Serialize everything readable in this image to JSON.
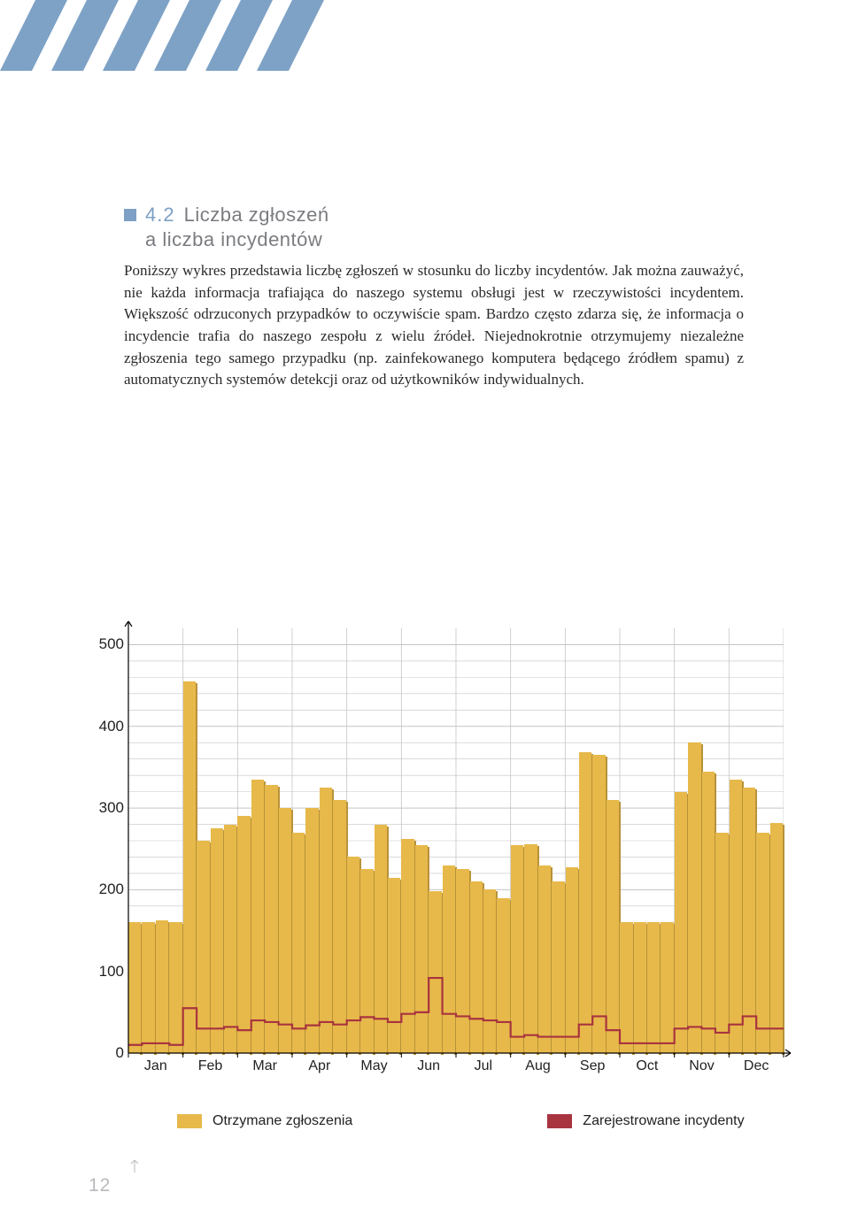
{
  "header": {
    "stripe_color": "#7ea2c6",
    "stripe_bg": "#ffffff"
  },
  "heading": {
    "number": "4.2",
    "title_main": "Liczba zgłoszeń",
    "title_sub": "a liczba incydentów",
    "box_color": "#7da0c4",
    "num_color": "#7da0c4",
    "txt_color": "#7a7c80"
  },
  "paragraph": "Poniższy wykres przedstawia liczbę zgłoszeń w stosunku do liczby incydentów. Jak można zauważyć, nie każda informacja trafiająca do naszego systemu obsługi jest w rzeczywistości incydentem. Większość odrzuconych przypadków to oczywiście spam. Bardzo często zdarza się, że informacja o incydencie trafia do naszego zespołu z wielu źródeł. Niejednokrotnie otrzymujemy niezależne zgłoszenia tego samego przypadku (np. zainfekowanego komputera będącego źródłem spamu) z automatycznych systemów detekcji oraz od użytkowników indywidualnych.",
  "chart": {
    "type": "bar+step",
    "ylim": [
      0,
      520
    ],
    "yticks": [
      0,
      100,
      200,
      300,
      400,
      500
    ],
    "xticks": [
      "Jan",
      "Feb",
      "Mar",
      "Apr",
      "May",
      "Jun",
      "Jul",
      "Aug",
      "Sep",
      "Oct",
      "Nov",
      "Dec"
    ],
    "grid_color": "#c4c4c4",
    "axis_color": "#000000",
    "bar_color": "#e7b94a",
    "bar_shadow": "#b8923a",
    "line_color": "#a8343f",
    "background": "#ffffff",
    "bars": [
      160,
      160,
      162,
      160,
      455,
      260,
      275,
      280,
      290,
      335,
      328,
      300,
      270,
      300,
      325,
      310,
      240,
      225,
      280,
      215,
      262,
      255,
      198,
      230,
      225,
      210,
      200,
      190,
      255,
      256,
      230,
      210,
      228,
      368,
      365,
      310,
      160,
      160,
      160,
      160,
      320,
      380,
      345,
      270,
      335,
      325,
      270,
      282
    ],
    "line": [
      10,
      12,
      12,
      10,
      55,
      30,
      30,
      32,
      28,
      40,
      38,
      35,
      30,
      34,
      38,
      35,
      40,
      44,
      42,
      38,
      48,
      50,
      92,
      48,
      45,
      42,
      40,
      38,
      20,
      22,
      20,
      20,
      20,
      35,
      45,
      28,
      12,
      12,
      12,
      12,
      30,
      32,
      30,
      25,
      35,
      45,
      30,
      30
    ]
  },
  "legend": {
    "a_label": "Otrzymane zgłoszenia",
    "a_color": "#e7b94a",
    "b_label": "Zarejestrowane incydenty",
    "b_color": "#a8343f"
  },
  "page_number": "12"
}
